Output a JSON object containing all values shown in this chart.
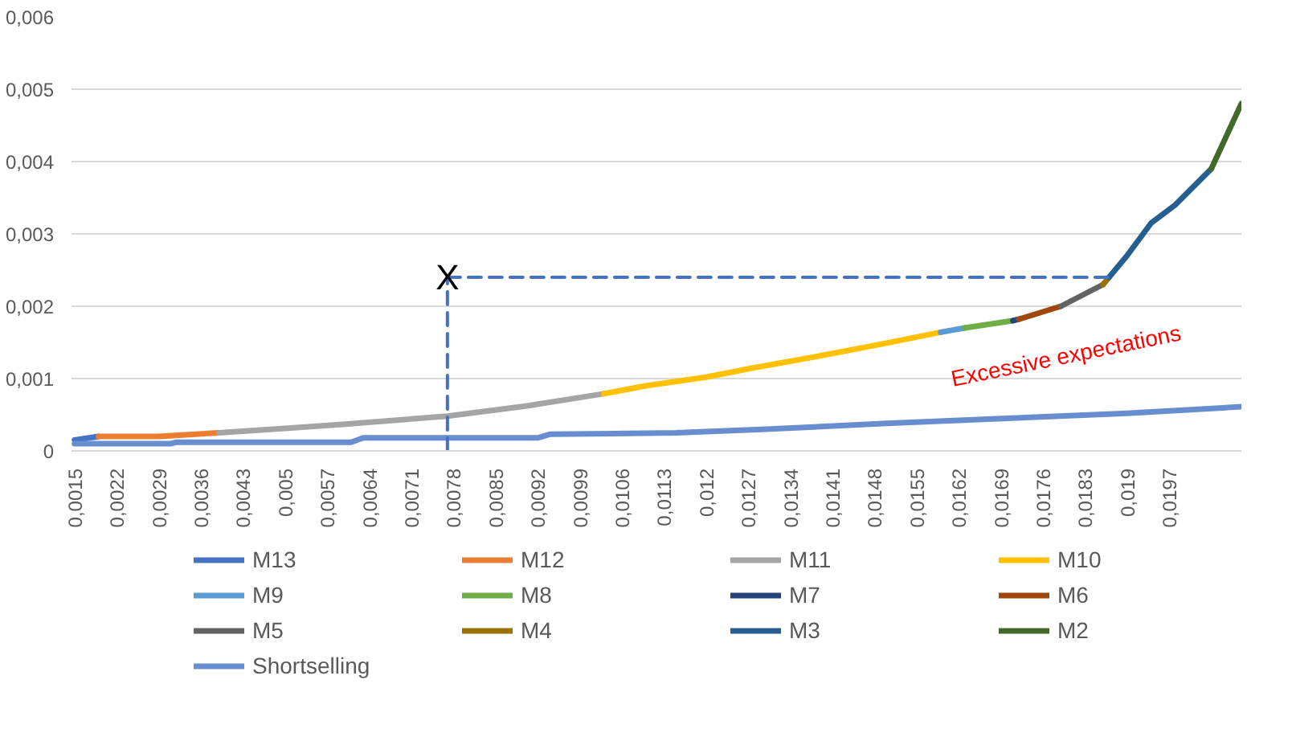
{
  "chart_data": {
    "type": "line",
    "series": [
      {
        "name": "M13",
        "color": "#4472c4",
        "x": [
          0.0015,
          0.0019
        ],
        "values": [
          0.00015,
          0.0002
        ]
      },
      {
        "name": "M12",
        "color": "#ed7d31",
        "x": [
          0.0019,
          0.0029,
          0.0039
        ],
        "values": [
          0.0002,
          0.0002,
          0.00025
        ]
      },
      {
        "name": "M11",
        "color": "#a5a5a5",
        "x": [
          0.0039,
          0.005,
          0.006,
          0.0077,
          0.009,
          0.0103
        ],
        "values": [
          0.00025,
          0.00031,
          0.00037,
          0.00048,
          0.00062,
          0.00079
        ]
      },
      {
        "name": "M10",
        "color": "#ffc000",
        "x": [
          0.0103,
          0.011,
          0.012,
          0.0128,
          0.014,
          0.015,
          0.0159
        ],
        "values": [
          0.00079,
          0.0009,
          0.00102,
          0.00115,
          0.00133,
          0.00149,
          0.00164
        ]
      },
      {
        "name": "M9",
        "color": "#5b9bd5",
        "x": [
          0.0159,
          0.0163
        ],
        "values": [
          0.00164,
          0.0017
        ]
      },
      {
        "name": "M8",
        "color": "#70ad47",
        "x": [
          0.0163,
          0.0171
        ],
        "values": [
          0.0017,
          0.0018
        ]
      },
      {
        "name": "M7",
        "color": "#264478",
        "x": [
          0.0171,
          0.0172
        ],
        "values": [
          0.0018,
          0.00182
        ]
      },
      {
        "name": "M6",
        "color": "#9e480e",
        "x": [
          0.0172,
          0.0179
        ],
        "values": [
          0.00182,
          0.002
        ]
      },
      {
        "name": "M5",
        "color": "#636363",
        "x": [
          0.0179,
          0.0186
        ],
        "values": [
          0.002,
          0.0023
        ]
      },
      {
        "name": "M4",
        "color": "#997300",
        "x": [
          0.0186,
          0.0187
        ],
        "values": [
          0.0023,
          0.0024
        ]
      },
      {
        "name": "M3",
        "color": "#255e91",
        "x": [
          0.0187,
          0.019,
          0.0194,
          0.0198,
          0.0204
        ],
        "values": [
          0.0024,
          0.0027,
          0.00315,
          0.0034,
          0.0039
        ]
      },
      {
        "name": "M2",
        "color": "#43682b",
        "x": [
          0.0204,
          0.0209
        ],
        "values": [
          0.0039,
          0.0048
        ]
      },
      {
        "name": "Shortselling",
        "color": "#698ed0",
        "x": [
          0.0015,
          0.0031,
          0.0032,
          0.0061,
          0.0063,
          0.0092,
          0.0094,
          0.0115,
          0.013,
          0.015,
          0.017,
          0.019,
          0.0209
        ],
        "values": [
          0.0001,
          0.0001,
          0.00012,
          0.00012,
          0.00018,
          0.00018,
          0.00023,
          0.00025,
          0.0003,
          0.00038,
          0.00045,
          0.00052,
          0.00061
        ]
      },
      {
        "color": "#4472c4",
        "line_style": "dashed",
        "x": [
          0.0077,
          0.0077
        ],
        "values": [
          0,
          0.0024
        ]
      },
      {
        "color": "#4472c4",
        "line_style": "dashed",
        "x": [
          0.0077,
          0.0187
        ],
        "values": [
          0.0024,
          0.0024
        ]
      }
    ],
    "annotations": [
      {
        "text": "X",
        "x": 0.0077,
        "y": 0.0024
      },
      "Excessive expectations"
    ],
    "xlim": [
      0.00145,
      0.0209
    ],
    "ylim": [
      0,
      0.006
    ],
    "xticks": [
      {
        "value": 0.0015,
        "label": "0,0015"
      },
      {
        "value": 0.0022,
        "label": "0,0022"
      },
      {
        "value": 0.0029,
        "label": "0,0029"
      },
      {
        "value": 0.0036,
        "label": "0,0036"
      },
      {
        "value": 0.0043,
        "label": "0,0043"
      },
      {
        "value": 0.005,
        "label": "0,005"
      },
      {
        "value": 0.0057,
        "label": "0,0057"
      },
      {
        "value": 0.0064,
        "label": "0,0064"
      },
      {
        "value": 0.0071,
        "label": "0,0071"
      },
      {
        "value": 0.0078,
        "label": "0,0078"
      },
      {
        "value": 0.0085,
        "label": "0,0085"
      },
      {
        "value": 0.0092,
        "label": "0,0092"
      },
      {
        "value": 0.0099,
        "label": "0,0099"
      },
      {
        "value": 0.0106,
        "label": "0,0106"
      },
      {
        "value": 0.0113,
        "label": "0,0113"
      },
      {
        "value": 0.012,
        "label": "0,012"
      },
      {
        "value": 0.0127,
        "label": "0,0127"
      },
      {
        "value": 0.0134,
        "label": "0,0134"
      },
      {
        "value": 0.0141,
        "label": "0,0141"
      },
      {
        "value": 0.0148,
        "label": "0,0148"
      },
      {
        "value": 0.0155,
        "label": "0,0155"
      },
      {
        "value": 0.0162,
        "label": "0,0162"
      },
      {
        "value": 0.0169,
        "label": "0,0169"
      },
      {
        "value": 0.0176,
        "label": "0,0176"
      },
      {
        "value": 0.0183,
        "label": "0,0183"
      },
      {
        "value": 0.019,
        "label": "0,019"
      },
      {
        "value": 0.0197,
        "label": "0,0197"
      }
    ],
    "yticks": [
      0,
      {
        "value": 0.001,
        "label": "0,001"
      },
      {
        "value": 0.002,
        "label": "0,002"
      },
      {
        "value": 0.003,
        "label": "0,003"
      },
      {
        "value": 0.004,
        "label": "0,004"
      },
      {
        "value": 0.005,
        "label": "0,005"
      },
      {
        "value": 0.006,
        "label": "0,006"
      }
    ],
    "grid": "y",
    "legend": "bottom",
    "marker": "none",
    "line_style": "solid"
  }
}
